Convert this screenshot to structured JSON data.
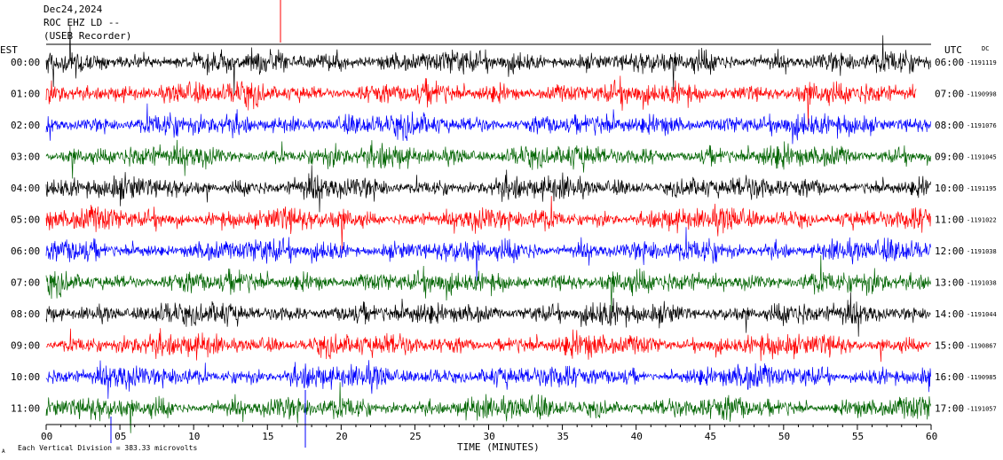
{
  "header": {
    "date": "Dec24,2024",
    "station": "ROC EHZ LD --",
    "source": "(USEB Recorder)"
  },
  "chart_data": {
    "type": "line",
    "subtype": "helicorder-seismogram",
    "left_axis_title": "EST",
    "right_axis_title": "UTC",
    "dc_label": "DC",
    "xlabel": "TIME (MINUTES)",
    "xlim": [
      0,
      60
    ],
    "x_ticks": [
      "00",
      "05",
      "10",
      "15",
      "20",
      "25",
      "30",
      "35",
      "40",
      "45",
      "50",
      "55",
      "60"
    ],
    "footer_note": "Each Vertical Division =  383.33 microvolts",
    "corner_mark": "A",
    "trace_colors": [
      "#000000",
      "#ff0000",
      "#0000ff",
      "#006400"
    ],
    "rows": [
      {
        "local": "00:00",
        "utc": "06:00",
        "dc": "-1191119"
      },
      {
        "local": "01:00",
        "utc": "07:00",
        "dc": "-1190998"
      },
      {
        "local": "02:00",
        "utc": "08:00",
        "dc": "-1191076"
      },
      {
        "local": "03:00",
        "utc": "09:00",
        "dc": "-1191045"
      },
      {
        "local": "04:00",
        "utc": "10:00",
        "dc": "-1191195"
      },
      {
        "local": "05:00",
        "utc": "11:00",
        "dc": "-1191022"
      },
      {
        "local": "06:00",
        "utc": "12:00",
        "dc": "-1191038"
      },
      {
        "local": "07:00",
        "utc": "13:00",
        "dc": "-1191038"
      },
      {
        "local": "08:00",
        "utc": "14:00",
        "dc": "-1191044"
      },
      {
        "local": "09:00",
        "utc": "15:00",
        "dc": "-1190867"
      },
      {
        "local": "10:00",
        "utc": "16:00",
        "dc": "-1190985"
      },
      {
        "local": "11:00",
        "utc": "17:00",
        "dc": "-1191057"
      }
    ]
  }
}
